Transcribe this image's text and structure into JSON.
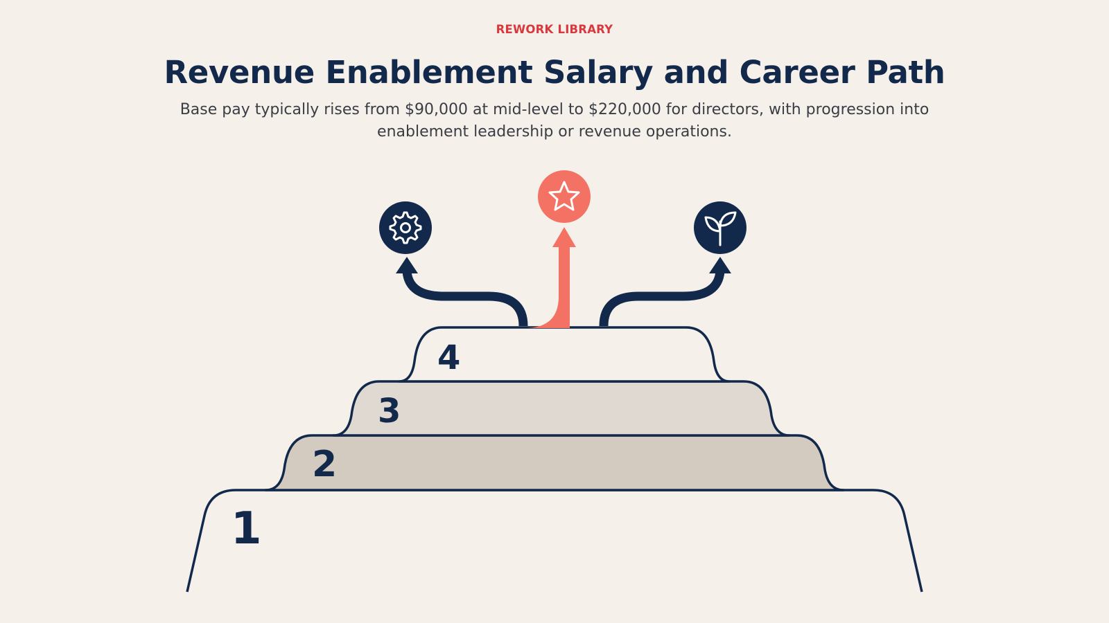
{
  "header": {
    "eyebrow": "REWORK LIBRARY",
    "title": "Revenue Enablement Salary and Career Path",
    "subtitle": "Base pay typically rises from $90,000 at mid-level to $220,000 for directors, with progression into enablement leadership or revenue operations."
  },
  "steps": [
    {
      "label": "1"
    },
    {
      "label": "2"
    },
    {
      "label": "3"
    },
    {
      "label": "4"
    }
  ],
  "paths": [
    {
      "icon": "gear-icon",
      "color": "#13294b"
    },
    {
      "icon": "star-icon",
      "color": "#f47264"
    },
    {
      "icon": "sprout-icon",
      "color": "#13294b"
    }
  ],
  "colors": {
    "navy": "#13294b",
    "coral": "#f47264",
    "accent_red": "#d9383f",
    "background": "#f5f1ea",
    "tier2_fill": "#d4cbc0",
    "tier3_fill": "#e0d9d1",
    "tier4_fill": "#f5f1ea"
  }
}
